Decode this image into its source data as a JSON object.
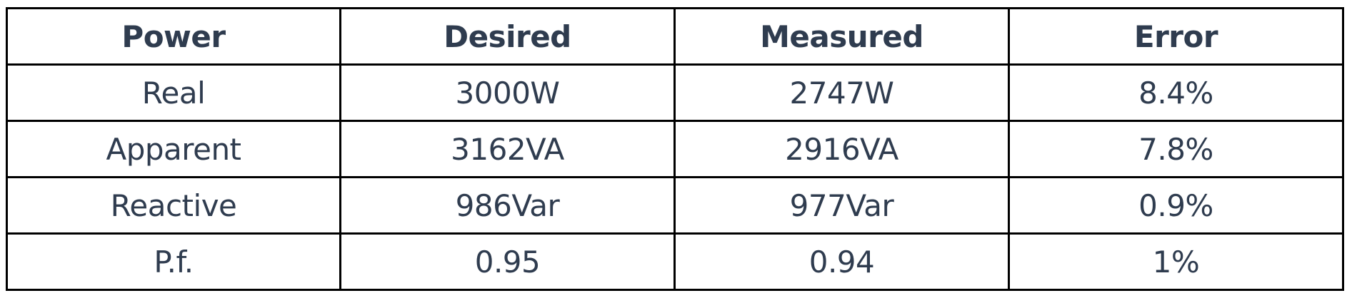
{
  "table": {
    "headers": [
      "Power",
      "Desired",
      "Measured",
      "Error"
    ],
    "rows": [
      [
        "Real",
        "3000W",
        "2747W",
        "8.4%"
      ],
      [
        "Apparent",
        "3162VA",
        "2916VA",
        "7.8%"
      ],
      [
        "Reactive",
        "986Var",
        "977Var",
        "0.9%"
      ],
      [
        "P.f.",
        "0.95",
        "0.94",
        "1%"
      ]
    ]
  },
  "colors": {
    "text": "#2f3c4f",
    "border": "#000000",
    "background": "#ffffff"
  }
}
